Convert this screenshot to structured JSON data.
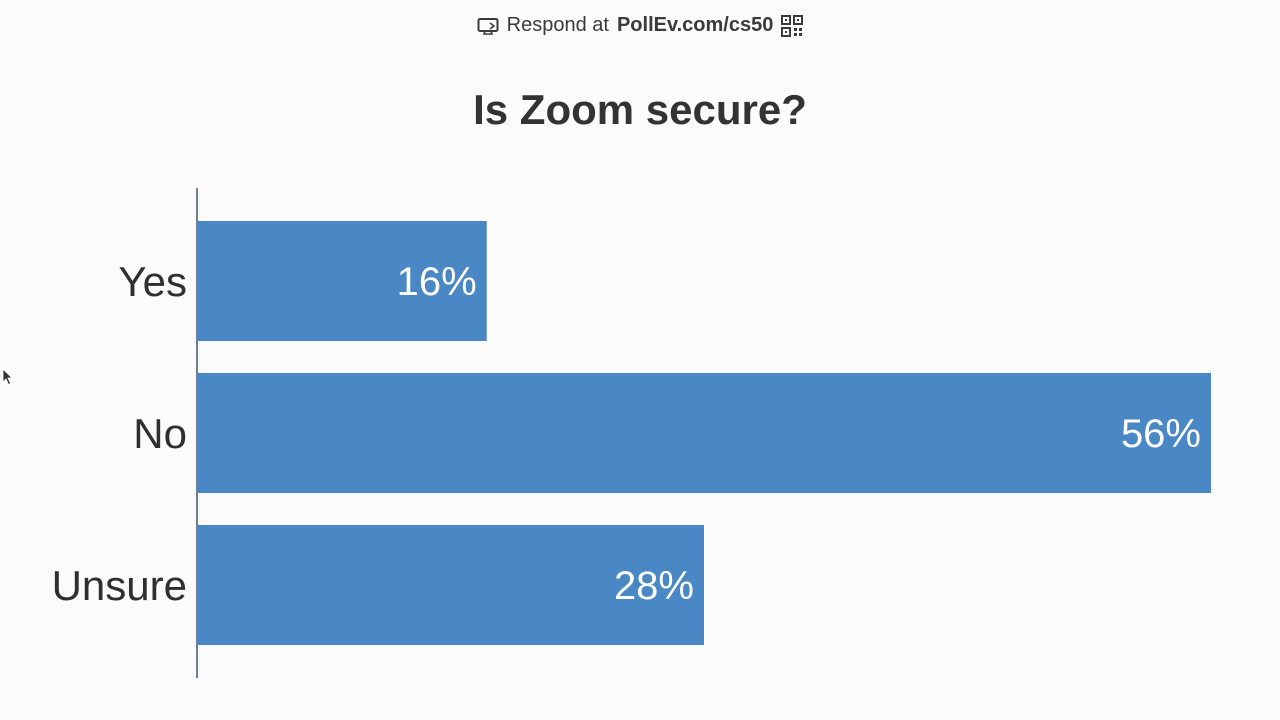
{
  "header": {
    "prefix": "Respond at",
    "url": "PollEv.com/cs50",
    "icons": [
      "screen-share-icon",
      "qr-code-icon"
    ]
  },
  "colors": {
    "bar": "#4a87c5",
    "axis": "#6b7f95",
    "background": "#fbfbfb"
  },
  "chart_data": {
    "type": "bar",
    "orientation": "horizontal",
    "title": "Is Zoom secure?",
    "categories": [
      "Yes",
      "No",
      "Unsure"
    ],
    "values": [
      16,
      56,
      28
    ],
    "value_labels": [
      "16%",
      "56%",
      "28%"
    ],
    "unit": "%",
    "xlim": [
      0,
      56
    ],
    "grid": false,
    "legend": "none"
  }
}
